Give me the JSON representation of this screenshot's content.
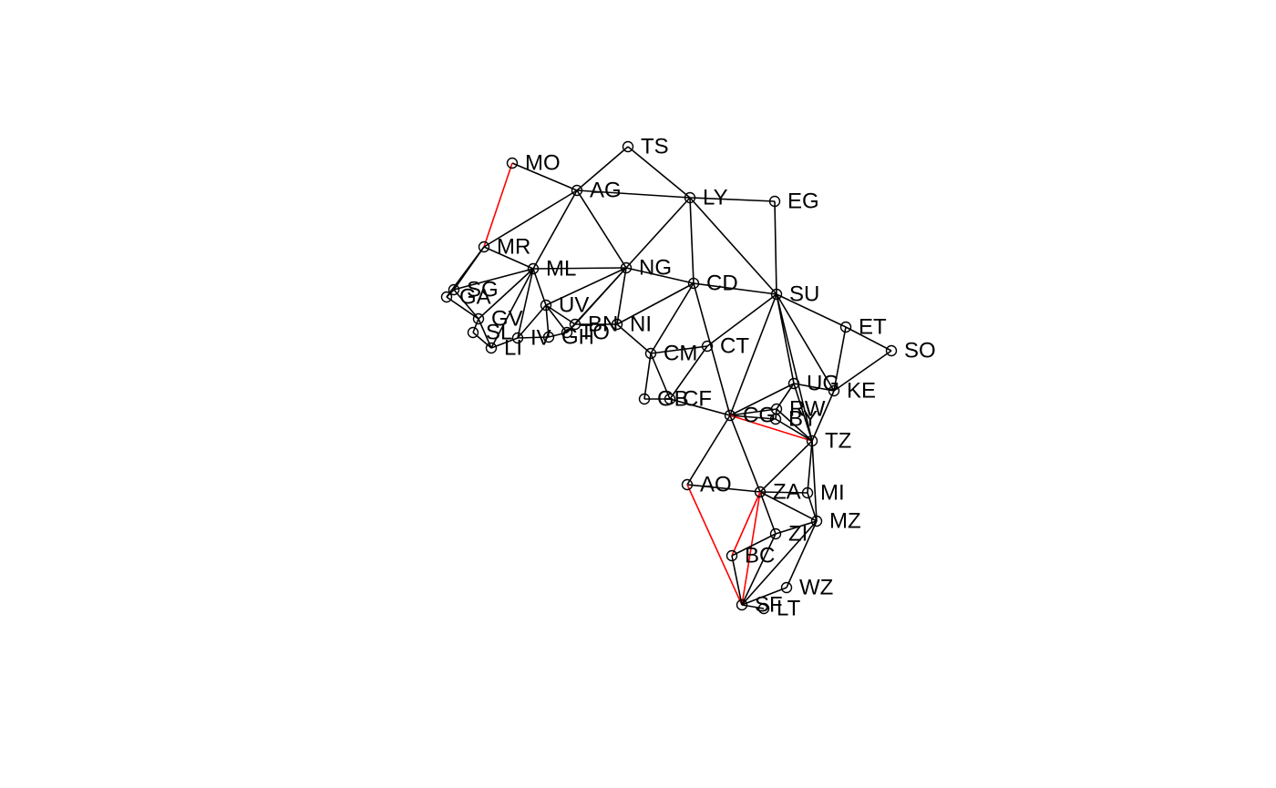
{
  "colors": {
    "edge": "#000000",
    "highlight": "#ff0000",
    "node_stroke": "#000000",
    "label": "#000000",
    "background": "#ffffff"
  },
  "nodes": [
    "MO",
    "TS",
    "AG",
    "LY",
    "EG",
    "MR",
    "ML",
    "NG",
    "CD",
    "SU",
    "SG",
    "GA",
    "GV",
    "UV",
    "BN",
    "NI",
    "SL",
    "LI",
    "IV",
    "GH",
    "TO",
    "ET",
    "SO",
    "CM",
    "CT",
    "UG",
    "KE",
    "GB",
    "CF",
    "CG",
    "RW",
    "BY",
    "TZ",
    "AO",
    "ZA",
    "MI",
    "MZ",
    "ZI",
    "BC",
    "WZ",
    "SF",
    "LT"
  ],
  "edges": [
    {
      "from": "MO",
      "to": "AG"
    },
    {
      "from": "MO",
      "to": "MR",
      "highlight": true
    },
    {
      "from": "TS",
      "to": "AG"
    },
    {
      "from": "TS",
      "to": "LY"
    },
    {
      "from": "AG",
      "to": "LY"
    },
    {
      "from": "AG",
      "to": "MR"
    },
    {
      "from": "AG",
      "to": "ML"
    },
    {
      "from": "AG",
      "to": "NG"
    },
    {
      "from": "LY",
      "to": "EG"
    },
    {
      "from": "LY",
      "to": "NG"
    },
    {
      "from": "LY",
      "to": "CD"
    },
    {
      "from": "LY",
      "to": "SU"
    },
    {
      "from": "EG",
      "to": "SU"
    },
    {
      "from": "MR",
      "to": "ML"
    },
    {
      "from": "MR",
      "to": "SG"
    },
    {
      "from": "ML",
      "to": "NG"
    },
    {
      "from": "ML",
      "to": "SG"
    },
    {
      "from": "ML",
      "to": "GV"
    },
    {
      "from": "ML",
      "to": "UV"
    },
    {
      "from": "ML",
      "to": "IV"
    },
    {
      "from": "ML",
      "to": "LI"
    },
    {
      "from": "NG",
      "to": "CD"
    },
    {
      "from": "NG",
      "to": "UV"
    },
    {
      "from": "NG",
      "to": "BN"
    },
    {
      "from": "NG",
      "to": "NI"
    },
    {
      "from": "NG",
      "to": "TO"
    },
    {
      "from": "CD",
      "to": "SU"
    },
    {
      "from": "CD",
      "to": "CM"
    },
    {
      "from": "CD",
      "to": "CG"
    },
    {
      "from": "CD",
      "to": "NI"
    },
    {
      "from": "SU",
      "to": "ET"
    },
    {
      "from": "SU",
      "to": "KE"
    },
    {
      "from": "SU",
      "to": "UG"
    },
    {
      "from": "SU",
      "to": "CG"
    },
    {
      "from": "SU",
      "to": "CT"
    },
    {
      "from": "SU",
      "to": "TZ"
    },
    {
      "from": "ET",
      "to": "SO"
    },
    {
      "from": "ET",
      "to": "KE"
    },
    {
      "from": "SO",
      "to": "KE"
    },
    {
      "from": "SG",
      "to": "GA"
    },
    {
      "from": "SG",
      "to": "GV"
    },
    {
      "from": "GA",
      "to": "GV"
    },
    {
      "from": "GA",
      "to": "MR"
    },
    {
      "from": "GV",
      "to": "SL"
    },
    {
      "from": "GV",
      "to": "LI"
    },
    {
      "from": "SL",
      "to": "LI"
    },
    {
      "from": "LI",
      "to": "IV"
    },
    {
      "from": "IV",
      "to": "UV"
    },
    {
      "from": "IV",
      "to": "GH"
    },
    {
      "from": "UV",
      "to": "GH"
    },
    {
      "from": "UV",
      "to": "TO"
    },
    {
      "from": "UV",
      "to": "BN"
    },
    {
      "from": "GH",
      "to": "TO"
    },
    {
      "from": "TO",
      "to": "BN"
    },
    {
      "from": "BN",
      "to": "NI"
    },
    {
      "from": "NI",
      "to": "CM"
    },
    {
      "from": "CM",
      "to": "CT"
    },
    {
      "from": "CM",
      "to": "GB"
    },
    {
      "from": "CM",
      "to": "CF"
    },
    {
      "from": "CT",
      "to": "CF"
    },
    {
      "from": "GB",
      "to": "CF"
    },
    {
      "from": "CF",
      "to": "CG"
    },
    {
      "from": "CG",
      "to": "UG"
    },
    {
      "from": "CG",
      "to": "RW"
    },
    {
      "from": "CG",
      "to": "BY"
    },
    {
      "from": "CG",
      "to": "TZ",
      "highlight": true
    },
    {
      "from": "CG",
      "to": "AO"
    },
    {
      "from": "CG",
      "to": "ZA"
    },
    {
      "from": "UG",
      "to": "KE"
    },
    {
      "from": "UG",
      "to": "RW"
    },
    {
      "from": "UG",
      "to": "TZ"
    },
    {
      "from": "KE",
      "to": "TZ"
    },
    {
      "from": "RW",
      "to": "BY"
    },
    {
      "from": "RW",
      "to": "TZ"
    },
    {
      "from": "BY",
      "to": "TZ"
    },
    {
      "from": "TZ",
      "to": "ZA"
    },
    {
      "from": "TZ",
      "to": "MI"
    },
    {
      "from": "TZ",
      "to": "MZ"
    },
    {
      "from": "AO",
      "to": "ZA"
    },
    {
      "from": "AO",
      "to": "SF",
      "highlight": true
    },
    {
      "from": "ZA",
      "to": "MI"
    },
    {
      "from": "ZA",
      "to": "MZ"
    },
    {
      "from": "ZA",
      "to": "ZI"
    },
    {
      "from": "ZA",
      "to": "BC",
      "highlight": true
    },
    {
      "from": "ZA",
      "to": "SF",
      "highlight": true
    },
    {
      "from": "MI",
      "to": "MZ"
    },
    {
      "from": "MZ",
      "to": "ZI"
    },
    {
      "from": "MZ",
      "to": "WZ"
    },
    {
      "from": "MZ",
      "to": "SF"
    },
    {
      "from": "ZI",
      "to": "BC"
    },
    {
      "from": "ZI",
      "to": "SF"
    },
    {
      "from": "BC",
      "to": "SF"
    },
    {
      "from": "SF",
      "to": "WZ"
    },
    {
      "from": "SF",
      "to": "LT"
    }
  ]
}
